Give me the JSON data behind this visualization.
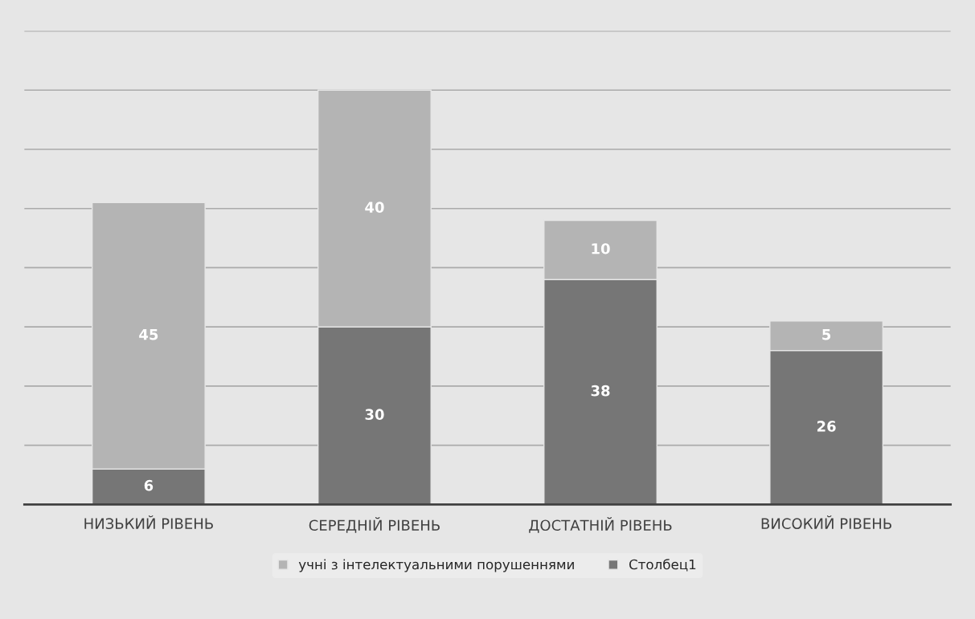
{
  "chart_data": {
    "type": "bar",
    "stacked": true,
    "categories": [
      "НИЗЬКИЙ РІВЕНЬ",
      "СЕРЕДНІЙ РІВЕНЬ",
      "ДОСТАТНІЙ РІВЕНЬ",
      "ВИСОКИЙ РІВЕНЬ"
    ],
    "series": [
      {
        "name": "Столбец1",
        "color": "#767676",
        "values": [
          6,
          30,
          38,
          26
        ]
      },
      {
        "name": "учні з інтелектуальними порушеннями",
        "color": "#b4b4b4",
        "values": [
          45,
          40,
          10,
          5
        ]
      }
    ],
    "ylim": [
      0,
      80
    ],
    "yticks": [
      {
        "value": 0,
        "label": null
      },
      {
        "value": 10,
        "label": null
      },
      {
        "value": 20,
        "label": null
      },
      {
        "value": 30,
        "label": null
      },
      {
        "value": 40,
        "label": null
      },
      {
        "value": 50,
        "label": null
      },
      {
        "value": 60,
        "label": null
      },
      {
        "value": 70,
        "label": null
      },
      {
        "value": 80,
        "label": null
      }
    ],
    "tick_labels": "x",
    "grid": "y",
    "data_labels": true,
    "legend": "bottom"
  }
}
